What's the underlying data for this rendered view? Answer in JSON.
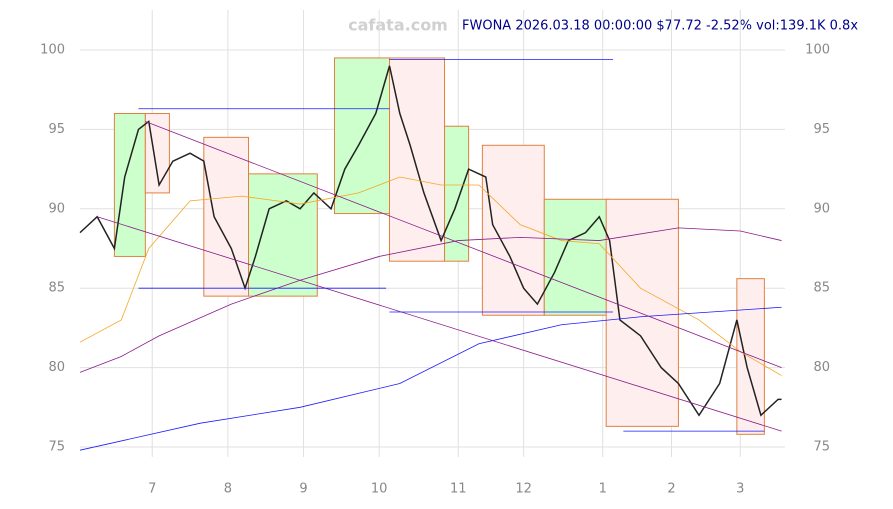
{
  "chart_data": {
    "type": "line",
    "watermark": "cafata.com",
    "title": "FWONA 2026.03.18 00:00:00 $77.72 -2.52% vol:139.1K 0.8x",
    "xlim": [
      0,
      205
    ],
    "ylim": [
      75,
      100
    ],
    "yticks": [
      75,
      80,
      85,
      90,
      95,
      100
    ],
    "xticks": [
      {
        "value": 21,
        "label": "7"
      },
      {
        "value": 43,
        "label": "8"
      },
      {
        "value": 65,
        "label": "9"
      },
      {
        "value": 87,
        "label": "10"
      },
      {
        "value": 110,
        "label": "11"
      },
      {
        "value": 129,
        "label": "12"
      },
      {
        "value": 152,
        "label": "1"
      },
      {
        "value": 172,
        "label": "2"
      },
      {
        "value": 192,
        "label": "3"
      }
    ],
    "grid": true,
    "zones": [
      {
        "x": [
          10,
          19
        ],
        "range": [
          87,
          96
        ],
        "color": "#ccffcc"
      },
      {
        "x": [
          19,
          26
        ],
        "range": [
          91,
          96
        ],
        "color": "#ffeeee"
      },
      {
        "x": [
          36,
          49
        ],
        "range": [
          84.5,
          94.5
        ],
        "color": "#ffeeee"
      },
      {
        "x": [
          49,
          69
        ],
        "range": [
          84.5,
          92.2
        ],
        "color": "#ccffcc"
      },
      {
        "x": [
          74,
          90
        ],
        "range": [
          89.7,
          99.5
        ],
        "color": "#ccffcc"
      },
      {
        "x": [
          90,
          106
        ],
        "range": [
          86.7,
          99.5
        ],
        "color": "#ffeeee"
      },
      {
        "x": [
          106,
          113
        ],
        "range": [
          86.7,
          95.2
        ],
        "color": "#ccffcc"
      },
      {
        "x": [
          117,
          135
        ],
        "range": [
          83.3,
          94
        ],
        "color": "#ffeeee"
      },
      {
        "x": [
          135,
          154
        ],
        "range": [
          83.3,
          90.6
        ],
        "color": "#ccffcc"
      },
      {
        "x": [
          153,
          174
        ],
        "range": [
          76.3,
          90.6
        ],
        "color": "#ffeeee"
      },
      {
        "x": [
          191,
          199
        ],
        "range": [
          75.8,
          85.6
        ],
        "color": "#ffeeee"
      }
    ],
    "series": [
      {
        "color": "#222222",
        "x": [
          0,
          5,
          10,
          13,
          17,
          20,
          23,
          27,
          32,
          36,
          39,
          44,
          48,
          51,
          55,
          60,
          64,
          68,
          73,
          77,
          81,
          86,
          90,
          93,
          96,
          100,
          105,
          109,
          113,
          118,
          120,
          125,
          129,
          133,
          138,
          142,
          147,
          151,
          154,
          157,
          163,
          169,
          174,
          180,
          186,
          191,
          194,
          198,
          203,
          204
        ],
        "values": [
          88.5,
          89.5,
          87.5,
          92,
          95,
          95.5,
          91.5,
          93,
          93.5,
          93,
          89.5,
          87.5,
          85,
          87,
          90,
          90.5,
          90,
          91,
          90,
          92.5,
          94,
          96,
          99,
          96,
          94,
          91,
          88,
          90,
          92.5,
          92,
          89,
          87,
          85,
          84,
          86,
          88,
          88.5,
          89.5,
          88,
          83,
          82,
          80,
          79,
          77,
          79,
          83,
          80,
          77,
          78,
          78
        ]
      },
      {
        "color": "#f5a623",
        "x": [
          0,
          12,
          20,
          32,
          47,
          64,
          81,
          93,
          105,
          116,
          128,
          140,
          151,
          163,
          180,
          192,
          204
        ],
        "values": [
          81.6,
          83,
          87.5,
          90.5,
          90.8,
          90.3,
          91,
          92,
          91.5,
          91.5,
          89,
          88,
          87.8,
          85,
          83,
          81,
          79.5
        ]
      },
      {
        "color": "#8b1a8b",
        "x": [
          0,
          12,
          23,
          44,
          64,
          87,
          110,
          128,
          151,
          174,
          192,
          204
        ],
        "values": [
          79.7,
          80.7,
          82,
          84,
          85.5,
          87,
          88,
          88.2,
          88,
          88.8,
          88.6,
          88
        ]
      },
      {
        "color": "#1a1aff",
        "x": [
          0,
          35,
          64,
          93,
          116,
          140,
          163,
          204
        ],
        "values": [
          74.8,
          76.5,
          77.5,
          79,
          81.5,
          82.7,
          83.2,
          83.8
        ]
      },
      {
        "color": "#8b1a8b",
        "x": [
          5,
          204
        ],
        "values": [
          89.5,
          76
        ]
      },
      {
        "color": "#8b1a8b",
        "x": [
          19,
          204
        ],
        "values": [
          95.5,
          80
        ]
      },
      {
        "color": "#1a1aff",
        "x": [
          17,
          90
        ],
        "values": [
          96.3,
          96.3
        ]
      },
      {
        "color": "#1a1aff",
        "x": [
          17,
          89
        ],
        "values": [
          85,
          85
        ]
      },
      {
        "color": "#1a1aff",
        "x": [
          90,
          155
        ],
        "values": [
          99.4,
          99.4
        ]
      },
      {
        "color": "#1a1aff",
        "x": [
          90,
          155
        ],
        "values": [
          83.5,
          83.5
        ]
      },
      {
        "color": "#1a1aff",
        "x": [
          158,
          199
        ],
        "values": [
          76,
          76
        ]
      }
    ]
  }
}
